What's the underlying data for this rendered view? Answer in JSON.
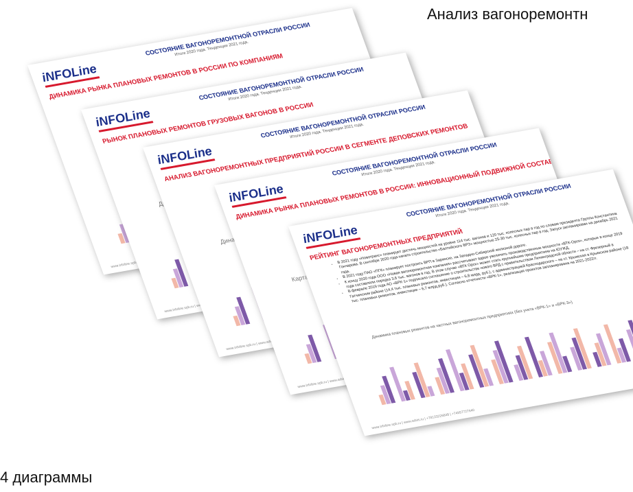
{
  "captions": {
    "top_right": "Анализ вагоноремонтн",
    "bottom_left": "4 диаграммы"
  },
  "slide_common": {
    "logo": "iNFOLine",
    "title": "СОСТОЯНИЕ ВАГОНОРЕМОНТНОЙ ОТРАСЛИ РОССИИ",
    "subtitle": "Итоги 2020 года. Тенденции 2021 года.",
    "footer": "www.infoline.spb.ru | www.advis.ru | +78123226848 | +74957727640"
  },
  "slides": [
    {
      "heading": "ДИНАМИКА РЫНКА ПЛАНОВЫХ РЕМОНТОВ В РОССИИ ПО КОМПАНИЯМ",
      "chart_title": "Динамика"
    },
    {
      "heading": "РЫНОК ПЛАНОВЫХ РЕМОНТОВ ГРУЗОВЫХ ВАГОНОВ В РОССИИ",
      "chart_title": "Динамика рынка"
    },
    {
      "heading": "АНАЛИЗ ВАГОНОРЕМОНТНЫХ ПРЕДПРИЯТИЙ РОССИИ В СЕГМЕНТЕ ДЕПОВСКИХ РЕМОНТОВ",
      "chart_title": "Динамика рынка"
    },
    {
      "heading": "ДИНАМИКА РЫНКА ПЛАНОВЫХ РЕМОНТОВ В РОССИИ: ИННОВАЦИОННЫЙ ПОДВИЖНОЙ СОСТАВ",
      "chart_title": "Карта размещ"
    },
    {
      "heading": "РЕЙТИНГ ВАГОНОРЕМОНТНЫХ ПРЕДПРИЯТИЙ",
      "chart_title": "Динамика плановых ремонтов на частных вагоноремонтных предприятиях (без учета «ВРК-1» и «ВРК-3»)",
      "bullets": [
        "В 2021 году «Новотранс» планирует достичь мощностей на уровне 114 тыс. вагонов и 120 тыс. колесных пар в год по словам президента Группы Константина Гончарова. В сентябре 2020 года начато строительство «Балтийского ВРЗ» мощностью 25-30 тыс. колесных пар в год. Запуск запланирован на декабрь 2021 года.",
        "В 2021 году ПАО «ПГК» планирует построить ВРП в Заринске, на Западно-Сибирской железной дороге.",
        "К концу 2020 года ООО «Новая вагоноремонтная компания» рассчитывает вдвое увеличить производственные мощности «ВТК-Орск», которые в конце 2019 года составляли порядка 3,6 тыс. вагонов в год. В этом случае «ВТК Орск» может стать крупнейшим предприятием на ЮУЖД.",
        "В феврале 2019 года АО «ВРК-1» подписало соглашение о строительстве нового ВРД с правительством Ленинградской области – на ст. Фрезерный в Гатчинском районе (14,4 тыс. плановых ремонтов, инвестиции – 6,8 млрд. руб.), с администрацией Краснодарского – на ст. Крымская в Крымском районе (18 тыс. плановых ремонтов, инвестиции – 6,7 млрд.руб.). Согласно отчетности «ВРК-1», реализация проектов запланирована на 2021-2022гг."
      ]
    }
  ]
}
